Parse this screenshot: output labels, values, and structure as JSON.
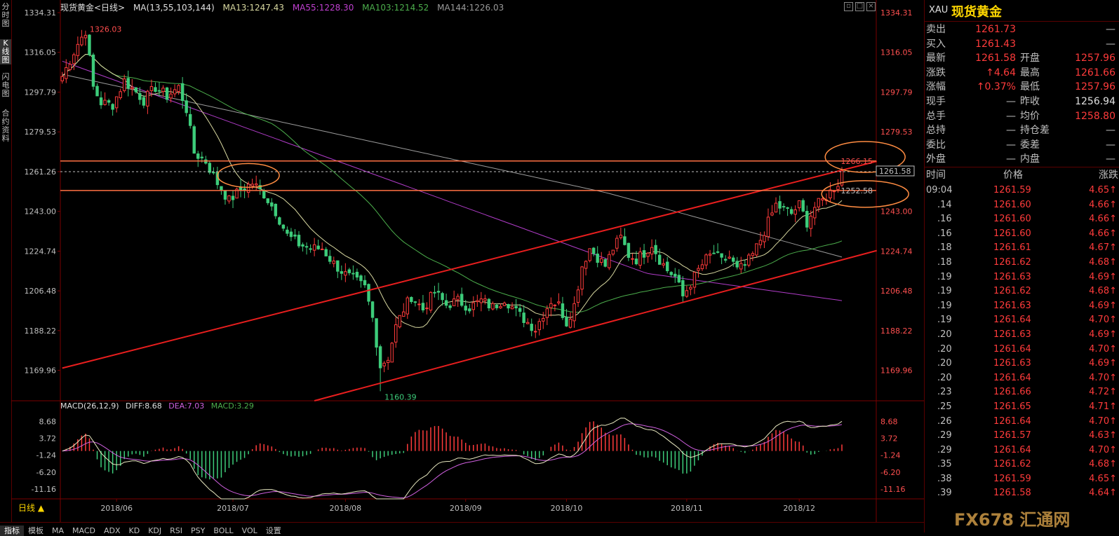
{
  "left_toolbar": [
    "分时图",
    "K线图",
    "闪电图",
    "合约资料"
  ],
  "ma_header": {
    "instrument": "现货黄金<日线>",
    "ma_label": "MA(13,55,103,144)",
    "ma13": "MA13:1247.43",
    "ma55": "MA55:1228.30",
    "ma103": "MA103:1214.52",
    "ma144": "MA144:1226.03"
  },
  "macd_header": {
    "label": "MACD(26,12,9)",
    "diff": "DIFF:8.68",
    "dea": "DEA:7.03",
    "macd": "MACD:3.29"
  },
  "period_label": "日线 ▲",
  "bottom_tabs": [
    "指标",
    "模板",
    "MA",
    "MACD",
    "ADX",
    "KD",
    "KDJ",
    "RSI",
    "PSY",
    "BOLL",
    "VOL",
    "设置"
  ],
  "colors": {
    "up": "#ff3b3b",
    "down": "#3dcc7a",
    "ma13": "#d8d8a0",
    "ma55": "#4cae4c",
    "ma103": "#b03cc8",
    "ma144": "#9a9a9a",
    "channel": "#e81e1e",
    "level": "#ff7043",
    "highlight_ellipse": "#ff8c42"
  },
  "right_panel": {
    "symbol": "XAU",
    "name": "现货黄金",
    "quote_rows": [
      {
        "l1": "卖出",
        "v1": "1261.73",
        "l2": "",
        "v2": "—"
      },
      {
        "l1": "买入",
        "v1": "1261.43",
        "l2": "",
        "v2": "—"
      },
      {
        "l1": "最新",
        "v1": "1261.58",
        "l2": "开盘",
        "v2": "1257.96"
      },
      {
        "l1": "涨跌",
        "v1": "↑4.64",
        "l2": "最高",
        "v2": "1261.66"
      },
      {
        "l1": "涨幅",
        "v1": "↑0.37%",
        "l2": "最低",
        "v2": "1257.96"
      },
      {
        "l1": "现手",
        "v1": "—",
        "l2": "昨收",
        "v2": "1256.94"
      },
      {
        "l1": "总手",
        "v1": "—",
        "l2": "均价",
        "v2": "1258.80"
      },
      {
        "l1": "总持",
        "v1": "—",
        "l2": "持仓差",
        "v2": "—"
      },
      {
        "l1": "委比",
        "v1": "—",
        "l2": "委差",
        "v2": "—"
      },
      {
        "l1": "外盘",
        "v1": "—",
        "l2": "内盘",
        "v2": "—"
      }
    ],
    "tick_header": {
      "time": "时间",
      "price": "价格",
      "change": "涨跌"
    },
    "ticks": [
      {
        "t": "09:04",
        "p": "1261.59",
        "c": "4.65↑"
      },
      {
        "t": ".14",
        "p": "1261.60",
        "c": "4.66↑"
      },
      {
        "t": ".16",
        "p": "1261.60",
        "c": "4.66↑"
      },
      {
        "t": ".16",
        "p": "1261.60",
        "c": "4.66↑"
      },
      {
        "t": ".18",
        "p": "1261.61",
        "c": "4.67↑"
      },
      {
        "t": ".18",
        "p": "1261.62",
        "c": "4.68↑"
      },
      {
        "t": ".19",
        "p": "1261.63",
        "c": "4.69↑"
      },
      {
        "t": ".19",
        "p": "1261.62",
        "c": "4.68↑"
      },
      {
        "t": ".19",
        "p": "1261.63",
        "c": "4.69↑"
      },
      {
        "t": ".19",
        "p": "1261.64",
        "c": "4.70↑"
      },
      {
        "t": ".20",
        "p": "1261.63",
        "c": "4.69↑"
      },
      {
        "t": ".20",
        "p": "1261.64",
        "c": "4.70↑"
      },
      {
        "t": ".20",
        "p": "1261.63",
        "c": "4.69↑"
      },
      {
        "t": ".20",
        "p": "1261.64",
        "c": "4.70↑"
      },
      {
        "t": ".23",
        "p": "1261.66",
        "c": "4.72↑"
      },
      {
        "t": ".25",
        "p": "1261.65",
        "c": "4.71↑"
      },
      {
        "t": ".26",
        "p": "1261.64",
        "c": "4.70↑"
      },
      {
        "t": ".29",
        "p": "1261.57",
        "c": "4.63↑"
      },
      {
        "t": ".29",
        "p": "1261.64",
        "c": "4.70↑"
      },
      {
        "t": ".35",
        "p": "1261.62",
        "c": "4.68↑"
      },
      {
        "t": ".38",
        "p": "1261.59",
        "c": "4.65↑"
      },
      {
        "t": ".39",
        "p": "1261.58",
        "c": "4.64↑"
      }
    ]
  },
  "watermark": "FX678 汇通网",
  "chart_data": [
    {
      "type": "candlestick",
      "title": "现货黄金<日线>",
      "y_ticks": [
        1334.31,
        1316.05,
        1297.79,
        1279.53,
        1261.26,
        1243.0,
        1224.74,
        1206.48,
        1188.22,
        1169.96
      ],
      "y_tick_labels": [
        "1334.31",
        "1316.05",
        "1297.79",
        "1279.53",
        "1261.26",
        "1243.00",
        "1224.74",
        "1206.48",
        "1188.22",
        "1169.96"
      ],
      "ylim": [
        1156.0,
        1334.31
      ],
      "x_labels": [
        "2018/06",
        "2018/07",
        "2018/08",
        "2018/09",
        "2018/10",
        "2018/11",
        "2018/12"
      ],
      "x_label_index": [
        14,
        44,
        73,
        104,
        130,
        161,
        190
      ],
      "n_bars": 210,
      "anchors": [
        [
          0,
          1305
        ],
        [
          4,
          1320
        ],
        [
          6,
          1326
        ],
        [
          8,
          1300
        ],
        [
          10,
          1293
        ],
        [
          13,
          1292
        ],
        [
          16,
          1303
        ],
        [
          19,
          1298
        ],
        [
          21,
          1294
        ],
        [
          24,
          1300
        ],
        [
          27,
          1296
        ],
        [
          30,
          1300
        ],
        [
          32,
          1290
        ],
        [
          34,
          1270
        ],
        [
          37,
          1266
        ],
        [
          40,
          1256
        ],
        [
          43,
          1248
        ],
        [
          46,
          1253
        ],
        [
          49,
          1256
        ],
        [
          52,
          1251
        ],
        [
          55,
          1243
        ],
        [
          58,
          1232
        ],
        [
          61,
          1228
        ],
        [
          64,
          1226
        ],
        [
          67,
          1226
        ],
        [
          70,
          1219
        ],
        [
          73,
          1214
        ],
        [
          75,
          1212
        ],
        [
          78,
          1208
        ],
        [
          80,
          1194
        ],
        [
          82,
          1172
        ],
        [
          84,
          1176
        ],
        [
          86,
          1190
        ],
        [
          88,
          1198
        ],
        [
          90,
          1204
        ],
        [
          93,
          1198
        ],
        [
          96,
          1206
        ],
        [
          99,
          1200
        ],
        [
          102,
          1202
        ],
        [
          105,
          1199
        ],
        [
          108,
          1202
        ],
        [
          111,
          1199
        ],
        [
          114,
          1203
        ],
        [
          117,
          1197
        ],
        [
          120,
          1192
        ],
        [
          122,
          1189
        ],
        [
          124,
          1196
        ],
        [
          126,
          1202
        ],
        [
          128,
          1200
        ],
        [
          130,
          1192
        ],
        [
          132,
          1200
        ],
        [
          134,
          1218
        ],
        [
          136,
          1226
        ],
        [
          138,
          1222
        ],
        [
          140,
          1218
        ],
        [
          142,
          1226
        ],
        [
          144,
          1231
        ],
        [
          146,
          1223
        ],
        [
          148,
          1221
        ],
        [
          150,
          1224
        ],
        [
          152,
          1228
        ],
        [
          154,
          1221
        ],
        [
          156,
          1216
        ],
        [
          158,
          1213
        ],
        [
          160,
          1204
        ],
        [
          162,
          1210
        ],
        [
          164,
          1216
        ],
        [
          166,
          1221
        ],
        [
          168,
          1224
        ],
        [
          170,
          1220
        ],
        [
          172,
          1222
        ],
        [
          174,
          1216
        ],
        [
          176,
          1218
        ],
        [
          178,
          1223
        ],
        [
          180,
          1230
        ],
        [
          182,
          1238
        ],
        [
          184,
          1246
        ],
        [
          186,
          1244
        ],
        [
          188,
          1242
        ],
        [
          190,
          1246
        ],
        [
          192,
          1238
        ],
        [
          194,
          1245
        ],
        [
          196,
          1248
        ],
        [
          198,
          1252
        ],
        [
          200,
          1256
        ],
        [
          201,
          1261.58
        ]
      ],
      "ma13_last": 1247.43,
      "ma55_last": 1228.3,
      "ma103_last": 1214.52,
      "ma144_last": 1226.03,
      "annotations": [
        {
          "text": "1326.03",
          "kind": "high"
        },
        {
          "text": "1160.39",
          "kind": "low"
        },
        {
          "text": "1266.15",
          "kind": "recent-high"
        },
        {
          "text": "1252.58",
          "kind": "recent-low"
        },
        {
          "text": "1261.58",
          "kind": "last-price-tag"
        }
      ],
      "horizontal_levels": [
        1266.15,
        1252.58
      ],
      "dashed_level": 1261.26,
      "channel_lines": [
        {
          "from": [
            0,
            1171.0
          ],
          "to": [
            210,
            1266.0
          ]
        },
        {
          "from": [
            65,
            1156.0
          ],
          "to": [
            210,
            1225.0
          ]
        }
      ]
    },
    {
      "type": "macd",
      "title": "MACD(26,12,9)",
      "y_ticks": [
        8.68,
        3.72,
        -1.24,
        -6.2,
        -11.16
      ],
      "y_tick_labels": [
        "8.68",
        "3.72",
        "-1.24",
        "-6.20",
        "-11.16"
      ],
      "ylim": [
        -14.0,
        11.0
      ],
      "diff_last": 8.68,
      "dea_last": 7.03,
      "macd_last": 3.29
    }
  ]
}
